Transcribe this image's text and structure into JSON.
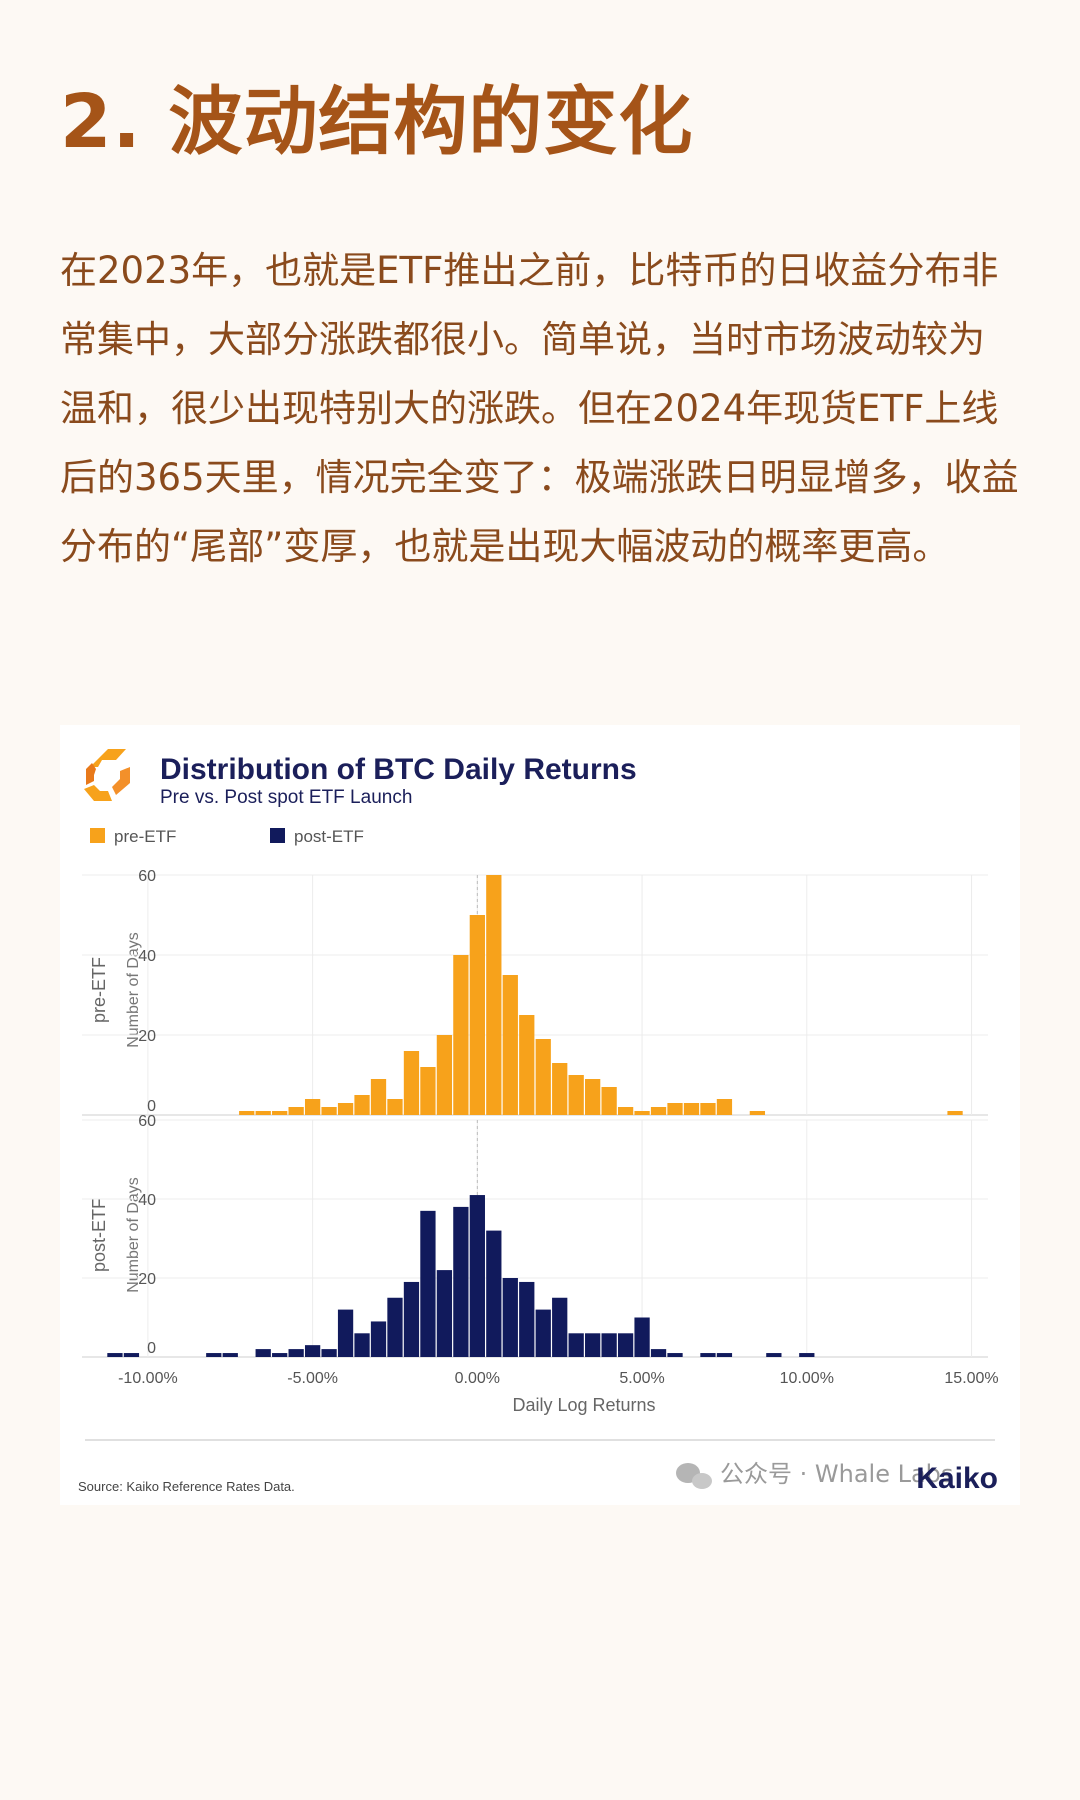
{
  "heading": "2. 波动结构的变化",
  "paragraph": "在2023年，也就是ETF推出之前，比特币的日收益分布非常集中，大部分涨跌都很小。简单说，当时市场波动较为温和，很少出现特别大的涨跌。但在2024年现货ETF上线后的365天里，情况完全变了：极端涨跌日明显增多，收益分布的“尾部”变厚，也就是出现大幅波动的概率更高。",
  "chart_data": {
    "type": "bar",
    "title": "Distribution of BTC Daily Returns",
    "subtitle": "Pre vs. Post spot ETF Launch",
    "xlabel": "Daily Log Returns",
    "ylabel": "Number of Days",
    "xlim": [
      -12,
      15.5
    ],
    "x_ticks": [
      -10,
      -5,
      0,
      5,
      10,
      15
    ],
    "x_tick_labels": [
      "-10.00%",
      "-5.00%",
      "0.00%",
      "5.00%",
      "10.00%",
      "15.00%"
    ],
    "ylim": [
      0,
      60
    ],
    "y_ticks": [
      0,
      20,
      40,
      60
    ],
    "bin_width": 0.5,
    "legend_position": "top-left",
    "grid": true,
    "panels": [
      {
        "name": "pre-ETF",
        "color": "#f7a21b",
        "bins": [
          {
            "x": -7.0,
            "y": 1
          },
          {
            "x": -6.5,
            "y": 1
          },
          {
            "x": -6.0,
            "y": 1
          },
          {
            "x": -5.5,
            "y": 2
          },
          {
            "x": -5.0,
            "y": 4
          },
          {
            "x": -4.5,
            "y": 2
          },
          {
            "x": -4.0,
            "y": 3
          },
          {
            "x": -3.5,
            "y": 5
          },
          {
            "x": -3.0,
            "y": 9
          },
          {
            "x": -2.5,
            "y": 4
          },
          {
            "x": -2.0,
            "y": 16
          },
          {
            "x": -1.5,
            "y": 12
          },
          {
            "x": -1.0,
            "y": 20
          },
          {
            "x": -0.5,
            "y": 40
          },
          {
            "x": 0.0,
            "y": 50
          },
          {
            "x": 0.5,
            "y": 60
          },
          {
            "x": 1.0,
            "y": 35
          },
          {
            "x": 1.5,
            "y": 25
          },
          {
            "x": 2.0,
            "y": 19
          },
          {
            "x": 2.5,
            "y": 13
          },
          {
            "x": 3.0,
            "y": 10
          },
          {
            "x": 3.5,
            "y": 9
          },
          {
            "x": 4.0,
            "y": 7
          },
          {
            "x": 4.5,
            "y": 2
          },
          {
            "x": 5.0,
            "y": 1
          },
          {
            "x": 5.5,
            "y": 2
          },
          {
            "x": 6.0,
            "y": 3
          },
          {
            "x": 6.5,
            "y": 3
          },
          {
            "x": 7.0,
            "y": 3
          },
          {
            "x": 7.5,
            "y": 4
          },
          {
            "x": 8.5,
            "y": 1
          },
          {
            "x": 14.5,
            "y": 1
          }
        ]
      },
      {
        "name": "post-ETF",
        "color": "#111a5c",
        "bins": [
          {
            "x": -11.0,
            "y": 1
          },
          {
            "x": -10.5,
            "y": 1
          },
          {
            "x": -8.0,
            "y": 1
          },
          {
            "x": -7.5,
            "y": 1
          },
          {
            "x": -6.5,
            "y": 2
          },
          {
            "x": -6.0,
            "y": 1
          },
          {
            "x": -5.5,
            "y": 2
          },
          {
            "x": -5.0,
            "y": 3
          },
          {
            "x": -4.5,
            "y": 2
          },
          {
            "x": -4.0,
            "y": 12
          },
          {
            "x": -3.5,
            "y": 6
          },
          {
            "x": -3.0,
            "y": 9
          },
          {
            "x": -2.5,
            "y": 15
          },
          {
            "x": -2.0,
            "y": 19
          },
          {
            "x": -1.5,
            "y": 37
          },
          {
            "x": -1.0,
            "y": 22
          },
          {
            "x": -0.5,
            "y": 38
          },
          {
            "x": 0.0,
            "y": 41
          },
          {
            "x": 0.5,
            "y": 32
          },
          {
            "x": 1.0,
            "y": 20
          },
          {
            "x": 1.5,
            "y": 19
          },
          {
            "x": 2.0,
            "y": 12
          },
          {
            "x": 2.5,
            "y": 15
          },
          {
            "x": 3.0,
            "y": 6
          },
          {
            "x": 3.5,
            "y": 6
          },
          {
            "x": 4.0,
            "y": 6
          },
          {
            "x": 4.5,
            "y": 6
          },
          {
            "x": 5.0,
            "y": 10
          },
          {
            "x": 5.5,
            "y": 2
          },
          {
            "x": 6.0,
            "y": 1
          },
          {
            "x": 7.0,
            "y": 1
          },
          {
            "x": 7.5,
            "y": 1
          },
          {
            "x": 9.0,
            "y": 1
          },
          {
            "x": 10.0,
            "y": 1
          }
        ]
      }
    ],
    "source": "Source: Kaiko Reference Rates Data.",
    "brand": "Kaiko"
  },
  "watermark": "公众号 · Whale Labs"
}
